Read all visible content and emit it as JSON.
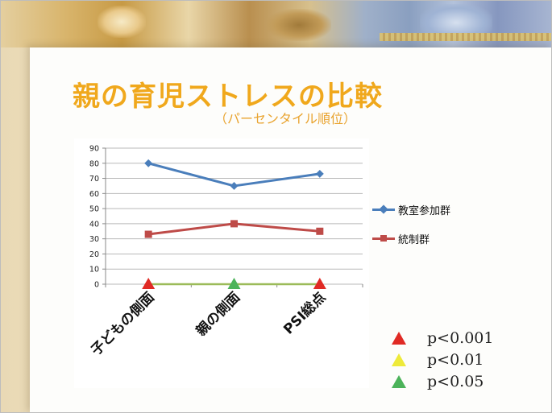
{
  "title": "親の育児ストレスの比較",
  "subtitle": "（パーセンタイル順位）",
  "chart_data": {
    "type": "line",
    "categories": [
      "子どもの側面",
      "親の側面",
      "PSI総点"
    ],
    "series": [
      {
        "name": "教室参加群",
        "values": [
          80,
          65,
          73
        ],
        "color": "#4a7ebb"
      },
      {
        "name": "統制群",
        "values": [
          33,
          40,
          35
        ],
        "color": "#be4b48"
      }
    ],
    "baseline_series": {
      "values": [
        0,
        0,
        0
      ],
      "color": "#9bbb59"
    },
    "significance_markers": [
      {
        "category": "子どもの側面",
        "level": "p<0.001"
      },
      {
        "category": "親の側面",
        "level": "p<0.05"
      },
      {
        "category": "PSI総点",
        "level": "p<0.001"
      }
    ],
    "ylim": [
      0,
      90
    ],
    "yticks": [
      0,
      10,
      20,
      30,
      40,
      50,
      60,
      70,
      80,
      90
    ],
    "grid": true,
    "legend_position": "right"
  },
  "significance_legend": [
    {
      "label": "p<0.001",
      "color": "#e02a24"
    },
    {
      "label": "p<0.01",
      "color": "#eeea3a"
    },
    {
      "label": "p<0.05",
      "color": "#4cb35a"
    }
  ]
}
